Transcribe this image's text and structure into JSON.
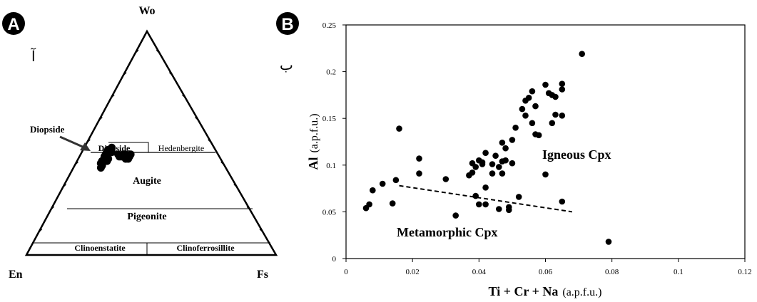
{
  "panel_a": {
    "badge": "A",
    "persian_letter": "آ",
    "vertex_top": "Wo",
    "vertex_left": "En",
    "vertex_right": "Fs",
    "fields": {
      "diopside_arrow_label": "Diopside",
      "diopside_field": "Diopside",
      "hedenbergite": "Hedenbergite",
      "augite": "Augite",
      "pigeonite": "Pigeonite",
      "clinoenstatite": "Clinoenstatite",
      "clinoferrosillite": "Clinoferrosillite"
    },
    "point_color": "#000000"
  },
  "panel_b": {
    "badge": "B",
    "persian_letter": "ب",
    "annotation_igneous": "Igneous Cpx",
    "annotation_metamorphic": "Metamorphic Cpx"
  },
  "chart_data": [
    {
      "type": "ternary",
      "vertices": [
        "Wo",
        "En",
        "Fs"
      ],
      "fields": [
        "Diopside",
        "Hedenbergite",
        "Augite",
        "Pigeonite",
        "Clinoenstatite",
        "Clinoferrosillite"
      ],
      "points_wo_en_fs": [
        [
          47,
          43,
          10
        ],
        [
          46,
          44,
          10
        ],
        [
          45,
          45,
          10
        ],
        [
          44,
          46,
          10
        ],
        [
          48,
          41,
          11
        ],
        [
          47,
          42,
          11
        ],
        [
          45,
          44,
          11
        ],
        [
          44,
          45,
          11
        ],
        [
          43,
          46,
          11
        ],
        [
          42,
          48,
          10
        ],
        [
          41,
          49,
          10
        ],
        [
          46,
          42,
          12
        ],
        [
          43,
          45,
          12
        ],
        [
          42,
          46,
          12
        ],
        [
          45,
          40,
          15
        ],
        [
          44,
          40,
          16
        ],
        [
          44,
          39,
          17
        ],
        [
          45,
          38,
          17
        ],
        [
          44,
          38,
          18
        ],
        [
          45,
          37,
          18
        ],
        [
          44,
          37,
          19
        ],
        [
          43,
          38,
          19
        ],
        [
          44,
          36,
          20
        ],
        [
          45,
          35,
          20
        ],
        [
          43,
          37,
          20
        ],
        [
          40,
          49,
          11
        ],
        [
          39,
          50,
          11
        ]
      ]
    },
    {
      "type": "scatter",
      "xlabel_bold": "Ti + Cr + Na",
      "xlabel_unit": "(a.p.f.u.)",
      "ylabel_bold": "Al",
      "ylabel_unit": "(a.p.f.u.)",
      "xlim": [
        0,
        0.12
      ],
      "ylim": [
        0,
        0.25
      ],
      "xticks": [
        "0",
        "0.02",
        "0.04",
        "0.06",
        "0.08",
        "0.1",
        "0.12"
      ],
      "yticks": [
        "0",
        "0.05",
        "0.1",
        "0.15",
        "0.2",
        "0.25"
      ],
      "points": [
        [
          0.006,
          0.054
        ],
        [
          0.007,
          0.058
        ],
        [
          0.008,
          0.073
        ],
        [
          0.011,
          0.08
        ],
        [
          0.014,
          0.059
        ],
        [
          0.015,
          0.084
        ],
        [
          0.016,
          0.139
        ],
        [
          0.022,
          0.107
        ],
        [
          0.022,
          0.091
        ],
        [
          0.03,
          0.085
        ],
        [
          0.033,
          0.046
        ],
        [
          0.037,
          0.089
        ],
        [
          0.038,
          0.102
        ],
        [
          0.038,
          0.092
        ],
        [
          0.039,
          0.067
        ],
        [
          0.039,
          0.098
        ],
        [
          0.04,
          0.105
        ],
        [
          0.04,
          0.058
        ],
        [
          0.041,
          0.101
        ],
        [
          0.041,
          0.103
        ],
        [
          0.042,
          0.113
        ],
        [
          0.042,
          0.076
        ],
        [
          0.042,
          0.058
        ],
        [
          0.044,
          0.091
        ],
        [
          0.044,
          0.101
        ],
        [
          0.045,
          0.11
        ],
        [
          0.046,
          0.098
        ],
        [
          0.046,
          0.053
        ],
        [
          0.047,
          0.091
        ],
        [
          0.047,
          0.104
        ],
        [
          0.047,
          0.124
        ],
        [
          0.048,
          0.118
        ],
        [
          0.048,
          0.105
        ],
        [
          0.049,
          0.055
        ],
        [
          0.049,
          0.052
        ],
        [
          0.05,
          0.102
        ],
        [
          0.05,
          0.127
        ],
        [
          0.051,
          0.14
        ],
        [
          0.052,
          0.066
        ],
        [
          0.053,
          0.16
        ],
        [
          0.054,
          0.169
        ],
        [
          0.054,
          0.153
        ],
        [
          0.055,
          0.172
        ],
        [
          0.056,
          0.145
        ],
        [
          0.056,
          0.179
        ],
        [
          0.057,
          0.163
        ],
        [
          0.057,
          0.133
        ],
        [
          0.058,
          0.132
        ],
        [
          0.06,
          0.186
        ],
        [
          0.06,
          0.09
        ],
        [
          0.061,
          0.177
        ],
        [
          0.062,
          0.175
        ],
        [
          0.062,
          0.145
        ],
        [
          0.063,
          0.173
        ],
        [
          0.063,
          0.154
        ],
        [
          0.065,
          0.187
        ],
        [
          0.065,
          0.181
        ],
        [
          0.065,
          0.153
        ],
        [
          0.065,
          0.061
        ],
        [
          0.071,
          0.219
        ],
        [
          0.079,
          0.018
        ]
      ],
      "trend_line": {
        "style": "dashed",
        "from": [
          0.016,
          0.078
        ],
        "to": [
          0.068,
          0.05
        ]
      }
    }
  ]
}
